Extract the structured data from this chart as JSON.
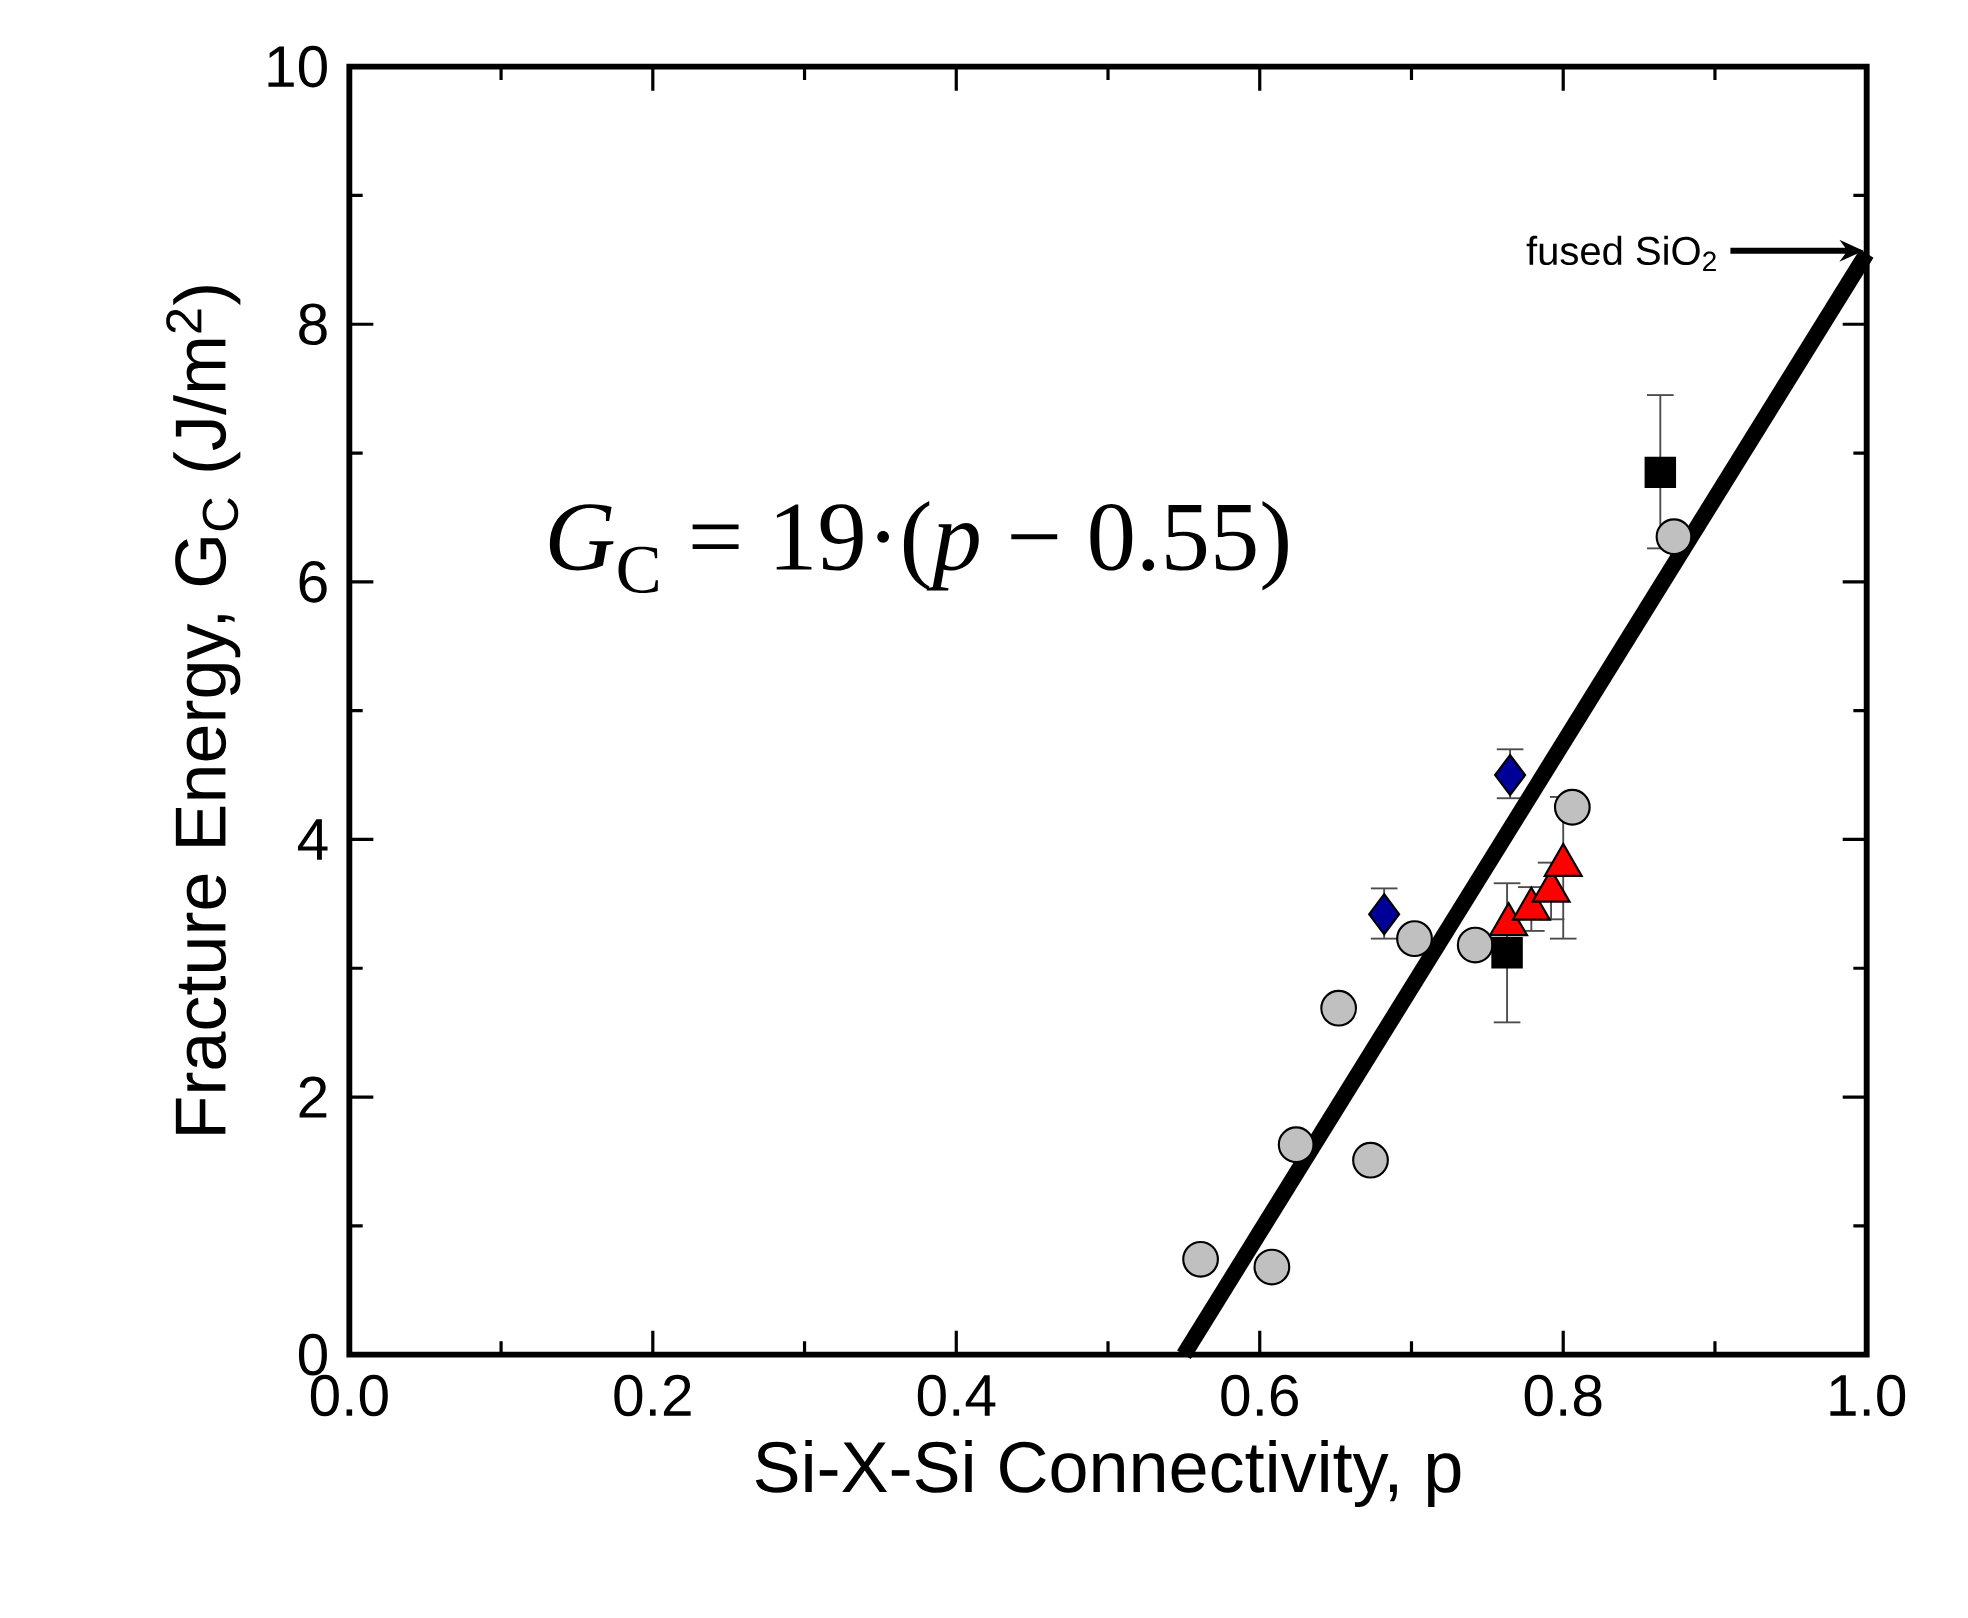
{
  "chart_data": {
    "type": "scatter",
    "xlabel": "Si-X-Si Connectivity, p",
    "ylabel": "Fracture Energy, G$_{C}$ (J/m$^{2}$)",
    "xlim": [
      0,
      1
    ],
    "ylim": [
      0,
      10
    ],
    "xticks": [
      {
        "value": 0,
        "label": "0.0"
      },
      {
        "value": 0.2,
        "label": "0.2"
      },
      {
        "value": 0.4,
        "label": "0.4"
      },
      {
        "value": 0.6,
        "label": "0.6"
      },
      {
        "value": 0.8,
        "label": "0.8"
      },
      {
        "value": 1,
        "label": "1.0"
      }
    ],
    "yticks": [
      0,
      2,
      4,
      6,
      8,
      10
    ],
    "grid": false,
    "series": [
      {
        "marker": "circle",
        "color": "#c0c0c0",
        "x": [
          0.561,
          0.608,
          0.624,
          0.652,
          0.673,
          0.702,
          0.742,
          0.806,
          0.873
        ],
        "values": [
          0.74,
          0.68,
          1.63,
          2.69,
          1.51,
          3.23,
          3.18,
          4.25,
          6.35
        ]
      },
      {
        "marker": "diamond",
        "color": "#000099",
        "x": [
          0.682,
          0.765
        ],
        "values": [
          3.42,
          4.5
        ],
        "errors": [
          [
            3.23,
            3.62
          ],
          [
            4.32,
            4.7
          ]
        ]
      },
      {
        "marker": "triangle",
        "color": "#ff0000",
        "x": [
          0.764,
          0.779,
          0.792,
          0.8
        ],
        "values": [
          3.34,
          3.46,
          3.6,
          3.8
        ],
        "errors": [
          null,
          [
            3.29,
            3.63
          ],
          [
            3.38,
            3.82
          ],
          [
            3.23,
            4.33
          ]
        ]
      },
      {
        "marker": "square",
        "color": "#000000",
        "x": [
          0.763,
          0.864
        ],
        "values": [
          3.12,
          6.85
        ],
        "errors": [
          [
            2.58,
            3.66
          ],
          [
            6.26,
            7.45
          ]
        ]
      },
      {
        "type": "line",
        "line_style": "solid",
        "color": "#000000",
        "x": [
          0.55,
          1.0
        ],
        "values": [
          0,
          8.55
        ]
      }
    ],
    "annotations": [
      "*G*$_{C}$ = 19·(*p* − 0.55)",
      "fused SiO$_{2}$"
    ]
  }
}
